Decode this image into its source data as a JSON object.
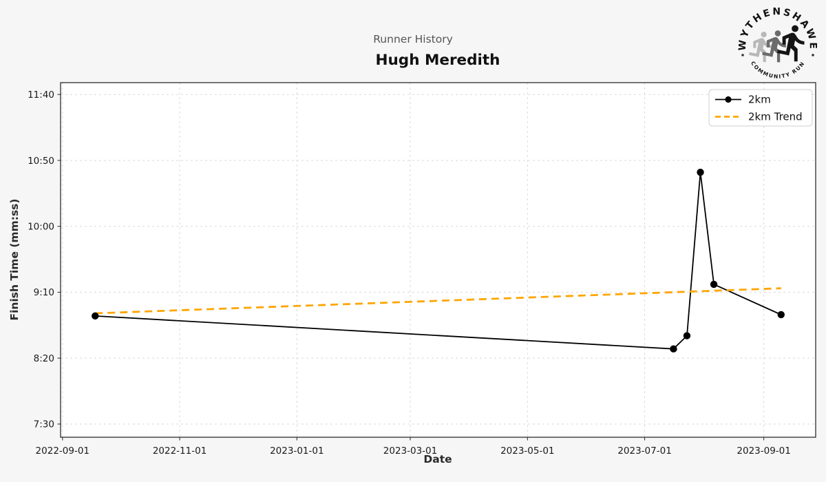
{
  "header": {
    "subtitle": "Runner History",
    "title": "Hugh Meredith"
  },
  "logo": {
    "arc_top": "WYTHENSHAWE",
    "arc_bottom": "COMMUNITY RUN"
  },
  "chart_data": {
    "type": "line",
    "title": "Runner History",
    "subject": "Hugh Meredith",
    "xlabel": "Date",
    "ylabel": "Finish Time (mm:ss)",
    "grid": true,
    "legend_position": "upper right",
    "legend_entries": [
      "2km",
      "2km Trend"
    ],
    "xlim": [
      "2022-08-31",
      "2023-09-28"
    ],
    "ylim": [
      "7:20",
      "11:49"
    ],
    "x_ticks": [
      "2022-09-01",
      "2022-11-01",
      "2023-01-01",
      "2023-03-01",
      "2023-05-01",
      "2023-07-01",
      "2023-09-01"
    ],
    "y_ticks": [
      "7:30",
      "8:20",
      "9:10",
      "10:00",
      "10:50",
      "11:40"
    ],
    "series": [
      {
        "name": "2km",
        "type": "line-markers",
        "color": "#000000",
        "points": [
          {
            "date": "2022-09-18",
            "time": "8:52"
          },
          {
            "date": "2023-07-16",
            "time": "8:27"
          },
          {
            "date": "2023-07-23",
            "time": "8:37"
          },
          {
            "date": "2023-07-30",
            "time": "10:41"
          },
          {
            "date": "2023-08-06",
            "time": "9:16"
          },
          {
            "date": "2023-09-10",
            "time": "8:53"
          }
        ]
      },
      {
        "name": "2km Trend",
        "type": "dashed-line",
        "color": "#FFA500",
        "points": [
          {
            "date": "2022-09-18",
            "time": "8:54"
          },
          {
            "date": "2023-09-10",
            "time": "9:13"
          }
        ]
      }
    ]
  },
  "colors": {
    "figure_bg": "#f6f6f6",
    "plot_bg": "#ffffff",
    "grid": "#d9d9d9",
    "spine": "#1a1a1a",
    "trend": "#FFA500",
    "series": "#000000"
  }
}
